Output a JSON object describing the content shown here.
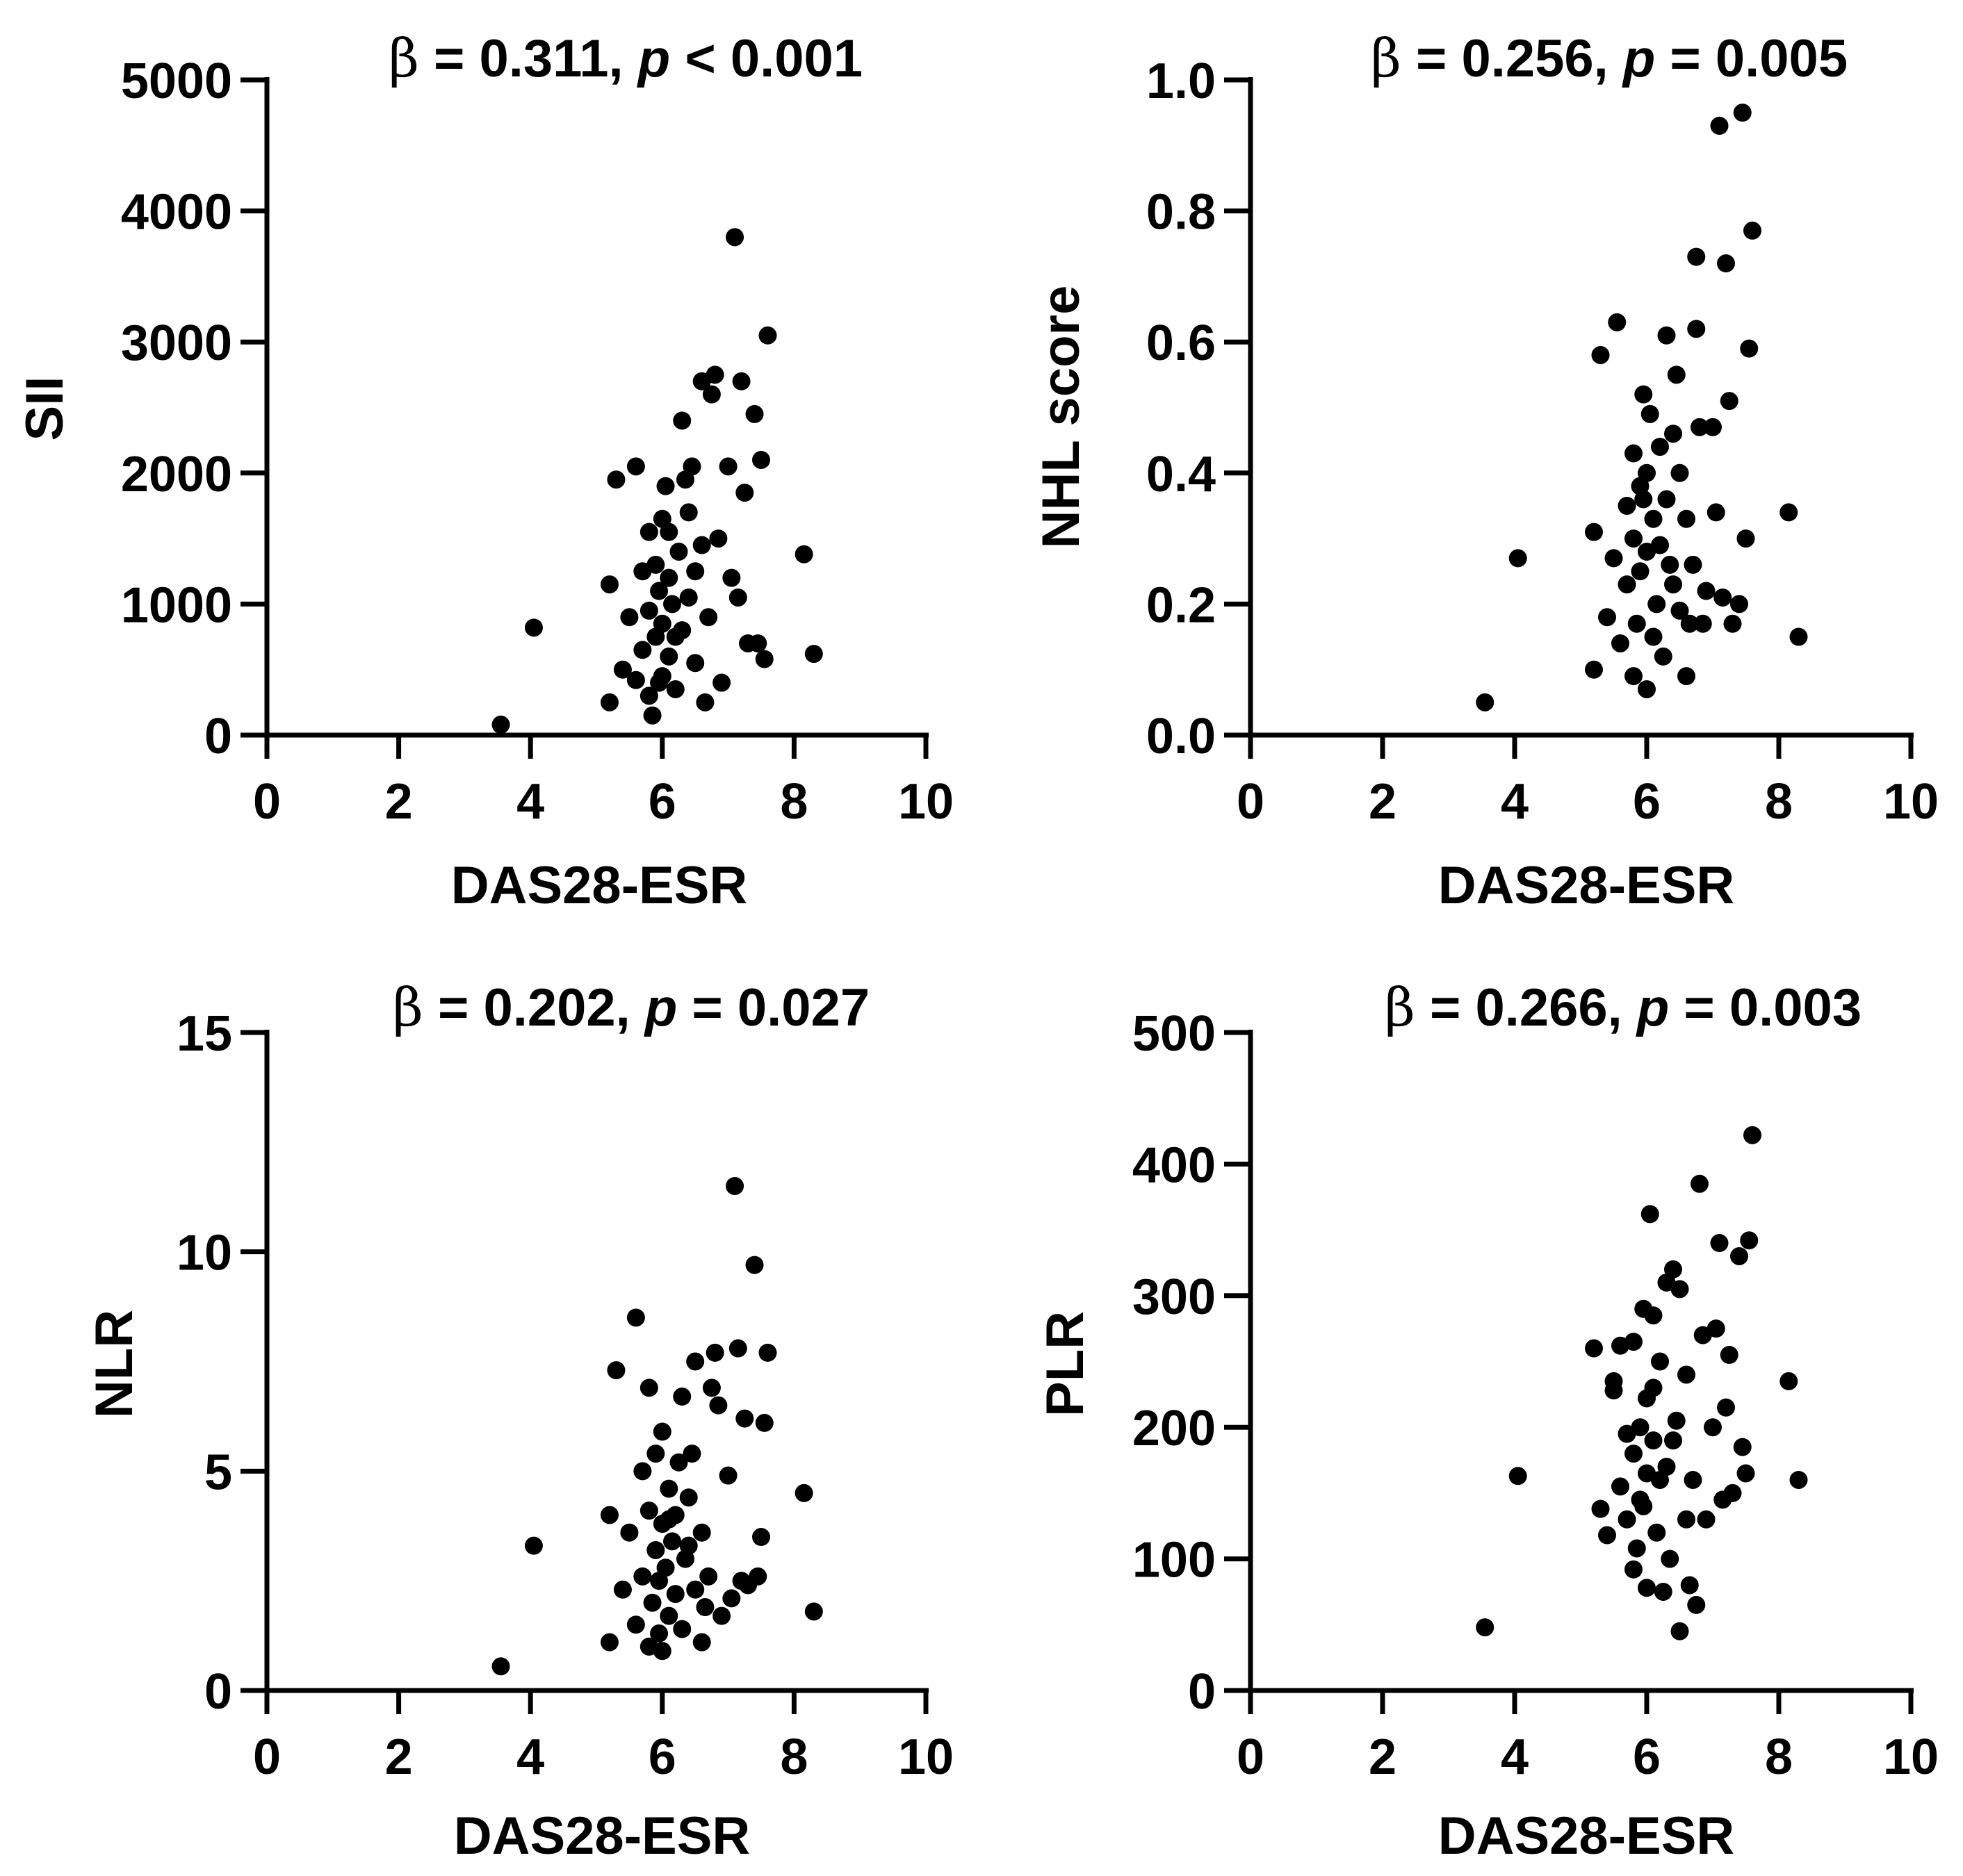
{
  "chart_data": [
    {
      "type": "scatter",
      "title": {
        "beta_symbol": "β",
        "beta_text": " = 0.311, ",
        "p_symbol": "p",
        "p_text": " < 0.001"
      },
      "xlabel": "DAS28-ESR",
      "ylabel": "SII",
      "xlim": [
        0,
        10
      ],
      "ylim": [
        0,
        5000
      ],
      "xticks": [
        "0",
        "2",
        "4",
        "6",
        "8",
        "10"
      ],
      "yticks": [
        "0",
        "1000",
        "2000",
        "3000",
        "4000",
        "5000"
      ],
      "points": [
        [
          3.55,
          80
        ],
        [
          4.05,
          820
        ],
        [
          5.2,
          1150
        ],
        [
          5.3,
          1950
        ],
        [
          5.6,
          2050
        ],
        [
          5.2,
          250
        ],
        [
          5.4,
          500
        ],
        [
          5.5,
          900
        ],
        [
          5.6,
          420
        ],
        [
          5.7,
          1250
        ],
        [
          5.7,
          650
        ],
        [
          5.8,
          1550
        ],
        [
          5.8,
          950
        ],
        [
          5.8,
          300
        ],
        [
          5.85,
          150
        ],
        [
          5.9,
          1300
        ],
        [
          5.9,
          750
        ],
        [
          5.95,
          1100
        ],
        [
          6.0,
          1650
        ],
        [
          6.0,
          850
        ],
        [
          6.0,
          450
        ],
        [
          6.05,
          1900
        ],
        [
          6.1,
          1200
        ],
        [
          6.1,
          600
        ],
        [
          6.15,
          1000
        ],
        [
          6.2,
          350
        ],
        [
          6.25,
          1400
        ],
        [
          6.3,
          800
        ],
        [
          6.3,
          2400
        ],
        [
          6.35,
          1950
        ],
        [
          6.4,
          1700
        ],
        [
          6.45,
          2050
        ],
        [
          6.5,
          1250
        ],
        [
          6.5,
          550
        ],
        [
          6.6,
          1450
        ],
        [
          6.6,
          2700
        ],
        [
          6.65,
          250
        ],
        [
          6.7,
          900
        ],
        [
          6.75,
          2600
        ],
        [
          6.8,
          2750
        ],
        [
          6.85,
          1500
        ],
        [
          6.9,
          400
        ],
        [
          7.0,
          2050
        ],
        [
          7.05,
          1200
        ],
        [
          7.1,
          3800
        ],
        [
          7.15,
          1050
        ],
        [
          7.2,
          2700
        ],
        [
          7.25,
          1850
        ],
        [
          7.3,
          700
        ],
        [
          7.4,
          2450
        ],
        [
          7.45,
          700
        ],
        [
          7.5,
          2100
        ],
        [
          7.55,
          580
        ],
        [
          7.6,
          3050
        ],
        [
          8.15,
          1380
        ],
        [
          8.3,
          620
        ],
        [
          6.1,
          1550
        ],
        [
          5.95,
          400
        ],
        [
          6.2,
          750
        ],
        [
          6.4,
          1050
        ]
      ]
    },
    {
      "type": "scatter",
      "title": {
        "beta_symbol": "β",
        "beta_text": " = 0.256, ",
        "p_symbol": "p",
        "p_text": " = 0.005"
      },
      "xlabel": "DAS28-ESR",
      "ylabel": "NHL score",
      "xlim": [
        0,
        10
      ],
      "ylim": [
        0,
        1.0
      ],
      "xticks": [
        "0",
        "2",
        "4",
        "6",
        "8",
        "10"
      ],
      "yticks": [
        "0.0",
        "0.2",
        "0.4",
        "0.6",
        "0.8",
        "1.0"
      ],
      "points": [
        [
          3.55,
          0.05
        ],
        [
          4.05,
          0.27
        ],
        [
          5.2,
          0.31
        ],
        [
          5.3,
          0.58
        ],
        [
          5.55,
          0.63
        ],
        [
          5.2,
          0.1
        ],
        [
          5.4,
          0.18
        ],
        [
          5.5,
          0.27
        ],
        [
          5.6,
          0.14
        ],
        [
          5.7,
          0.35
        ],
        [
          5.7,
          0.23
        ],
        [
          5.8,
          0.43
        ],
        [
          5.8,
          0.3
        ],
        [
          5.8,
          0.09
        ],
        [
          5.85,
          0.17
        ],
        [
          5.9,
          0.38
        ],
        [
          5.9,
          0.25
        ],
        [
          5.95,
          0.52
        ],
        [
          6.0,
          0.4
        ],
        [
          6.0,
          0.28
        ],
        [
          6.0,
          0.07
        ],
        [
          6.05,
          0.49
        ],
        [
          6.1,
          0.33
        ],
        [
          6.1,
          0.15
        ],
        [
          6.15,
          0.2
        ],
        [
          6.2,
          0.44
        ],
        [
          6.25,
          0.12
        ],
        [
          6.3,
          0.36
        ],
        [
          6.3,
          0.61
        ],
        [
          6.35,
          0.26
        ],
        [
          6.4,
          0.46
        ],
        [
          6.45,
          0.55
        ],
        [
          6.5,
          0.19
        ],
        [
          6.5,
          0.4
        ],
        [
          6.6,
          0.33
        ],
        [
          6.6,
          0.09
        ],
        [
          6.65,
          0.17
        ],
        [
          6.7,
          0.26
        ],
        [
          6.75,
          0.62
        ],
        [
          6.8,
          0.47
        ],
        [
          6.85,
          0.17
        ],
        [
          6.9,
          0.22
        ],
        [
          7.0,
          0.47
        ],
        [
          7.05,
          0.34
        ],
        [
          7.1,
          0.93
        ],
        [
          7.15,
          0.21
        ],
        [
          7.2,
          0.72
        ],
        [
          7.25,
          0.51
        ],
        [
          7.3,
          0.17
        ],
        [
          6.75,
          0.73
        ],
        [
          7.4,
          0.2
        ],
        [
          7.5,
          0.3
        ],
        [
          7.55,
          0.59
        ],
        [
          7.6,
          0.77
        ],
        [
          7.45,
          0.95
        ],
        [
          8.15,
          0.34
        ],
        [
          8.3,
          0.15
        ],
        [
          6.2,
          0.29
        ],
        [
          5.95,
          0.36
        ],
        [
          6.4,
          0.23
        ]
      ]
    },
    {
      "type": "scatter",
      "title": {
        "beta_symbol": "β",
        "beta_text": " = 0.202, ",
        "p_symbol": "p",
        "p_text": " = 0.027"
      },
      "xlabel": "DAS28-ESR",
      "ylabel": "NLR",
      "xlim": [
        0,
        10
      ],
      "ylim": [
        0,
        15
      ],
      "xticks": [
        "0",
        "2",
        "4",
        "6",
        "8",
        "10"
      ],
      "yticks": [
        "0",
        "5",
        "10",
        "15"
      ],
      "points": [
        [
          3.55,
          0.55
        ],
        [
          4.05,
          3.3
        ],
        [
          5.2,
          4.0
        ],
        [
          5.3,
          7.3
        ],
        [
          5.6,
          8.5
        ],
        [
          5.2,
          1.1
        ],
        [
          5.4,
          2.3
        ],
        [
          5.5,
          3.6
        ],
        [
          5.6,
          1.5
        ],
        [
          5.7,
          5.0
        ],
        [
          5.7,
          2.6
        ],
        [
          5.8,
          6.9
        ],
        [
          5.8,
          4.1
        ],
        [
          5.8,
          1.0
        ],
        [
          5.85,
          2.0
        ],
        [
          5.9,
          5.4
        ],
        [
          5.9,
          3.2
        ],
        [
          5.95,
          1.3
        ],
        [
          6.0,
          5.9
        ],
        [
          6.0,
          3.8
        ],
        [
          6.0,
          0.9
        ],
        [
          6.05,
          2.8
        ],
        [
          6.1,
          4.6
        ],
        [
          6.1,
          1.7
        ],
        [
          6.15,
          3.4
        ],
        [
          6.2,
          2.2
        ],
        [
          6.25,
          5.2
        ],
        [
          6.3,
          6.7
        ],
        [
          6.3,
          1.4
        ],
        [
          6.35,
          3.0
        ],
        [
          6.4,
          4.4
        ],
        [
          6.45,
          5.4
        ],
        [
          6.5,
          7.5
        ],
        [
          6.5,
          2.3
        ],
        [
          6.6,
          3.6
        ],
        [
          6.6,
          1.1
        ],
        [
          6.65,
          1.9
        ],
        [
          6.7,
          2.6
        ],
        [
          6.75,
          6.9
        ],
        [
          6.8,
          7.7
        ],
        [
          6.85,
          6.5
        ],
        [
          6.9,
          1.7
        ],
        [
          7.0,
          4.9
        ],
        [
          7.05,
          2.1
        ],
        [
          7.1,
          11.5
        ],
        [
          7.15,
          7.8
        ],
        [
          7.2,
          2.5
        ],
        [
          7.25,
          6.2
        ],
        [
          7.3,
          2.4
        ],
        [
          7.4,
          9.7
        ],
        [
          7.45,
          2.6
        ],
        [
          7.5,
          3.5
        ],
        [
          7.55,
          6.1
        ],
        [
          7.6,
          7.7
        ],
        [
          8.15,
          4.5
        ],
        [
          8.3,
          1.8
        ],
        [
          6.1,
          3.9
        ],
        [
          5.95,
          2.5
        ],
        [
          6.2,
          4.0
        ],
        [
          6.4,
          3.3
        ]
      ]
    },
    {
      "type": "scatter",
      "title": {
        "beta_symbol": "β",
        "beta_text": " = 0.266, ",
        "p_symbol": "p",
        "p_text": " = 0.003"
      },
      "xlabel": "DAS28-ESR",
      "ylabel": "PLR",
      "xlim": [
        0,
        10
      ],
      "ylim": [
        0,
        500
      ],
      "xticks": [
        "0",
        "2",
        "4",
        "6",
        "8",
        "10"
      ],
      "yticks": [
        "0",
        "100",
        "200",
        "300",
        "400",
        "500"
      ],
      "points": [
        [
          3.55,
          48
        ],
        [
          4.05,
          163
        ],
        [
          5.2,
          260
        ],
        [
          5.3,
          138
        ],
        [
          5.5,
          235
        ],
        [
          5.6,
          262
        ],
        [
          5.4,
          118
        ],
        [
          5.5,
          228
        ],
        [
          5.6,
          155
        ],
        [
          5.7,
          195
        ],
        [
          5.7,
          130
        ],
        [
          5.8,
          265
        ],
        [
          5.8,
          180
        ],
        [
          5.8,
          92
        ],
        [
          5.85,
          108
        ],
        [
          5.9,
          200
        ],
        [
          5.9,
          145
        ],
        [
          5.95,
          290
        ],
        [
          6.0,
          222
        ],
        [
          6.0,
          165
        ],
        [
          6.0,
          78
        ],
        [
          6.05,
          362
        ],
        [
          6.1,
          285
        ],
        [
          6.1,
          190
        ],
        [
          6.15,
          120
        ],
        [
          6.2,
          250
        ],
        [
          6.25,
          75
        ],
        [
          6.3,
          310
        ],
        [
          6.3,
          170
        ],
        [
          6.35,
          100
        ],
        [
          6.4,
          320
        ],
        [
          6.45,
          205
        ],
        [
          6.5,
          45
        ],
        [
          6.5,
          305
        ],
        [
          6.6,
          240
        ],
        [
          6.6,
          130
        ],
        [
          6.65,
          80
        ],
        [
          6.7,
          160
        ],
        [
          6.75,
          65
        ],
        [
          6.8,
          385
        ],
        [
          6.85,
          270
        ],
        [
          6.9,
          130
        ],
        [
          7.0,
          200
        ],
        [
          7.05,
          275
        ],
        [
          7.1,
          340
        ],
        [
          7.15,
          145
        ],
        [
          7.2,
          215
        ],
        [
          7.25,
          255
        ],
        [
          7.3,
          150
        ],
        [
          7.4,
          330
        ],
        [
          7.45,
          185
        ],
        [
          7.5,
          165
        ],
        [
          7.55,
          342
        ],
        [
          7.6,
          422
        ],
        [
          8.15,
          235
        ],
        [
          8.3,
          160
        ],
        [
          6.2,
          160
        ],
        [
          5.95,
          140
        ],
        [
          6.4,
          190
        ],
        [
          6.1,
          230
        ]
      ]
    }
  ]
}
